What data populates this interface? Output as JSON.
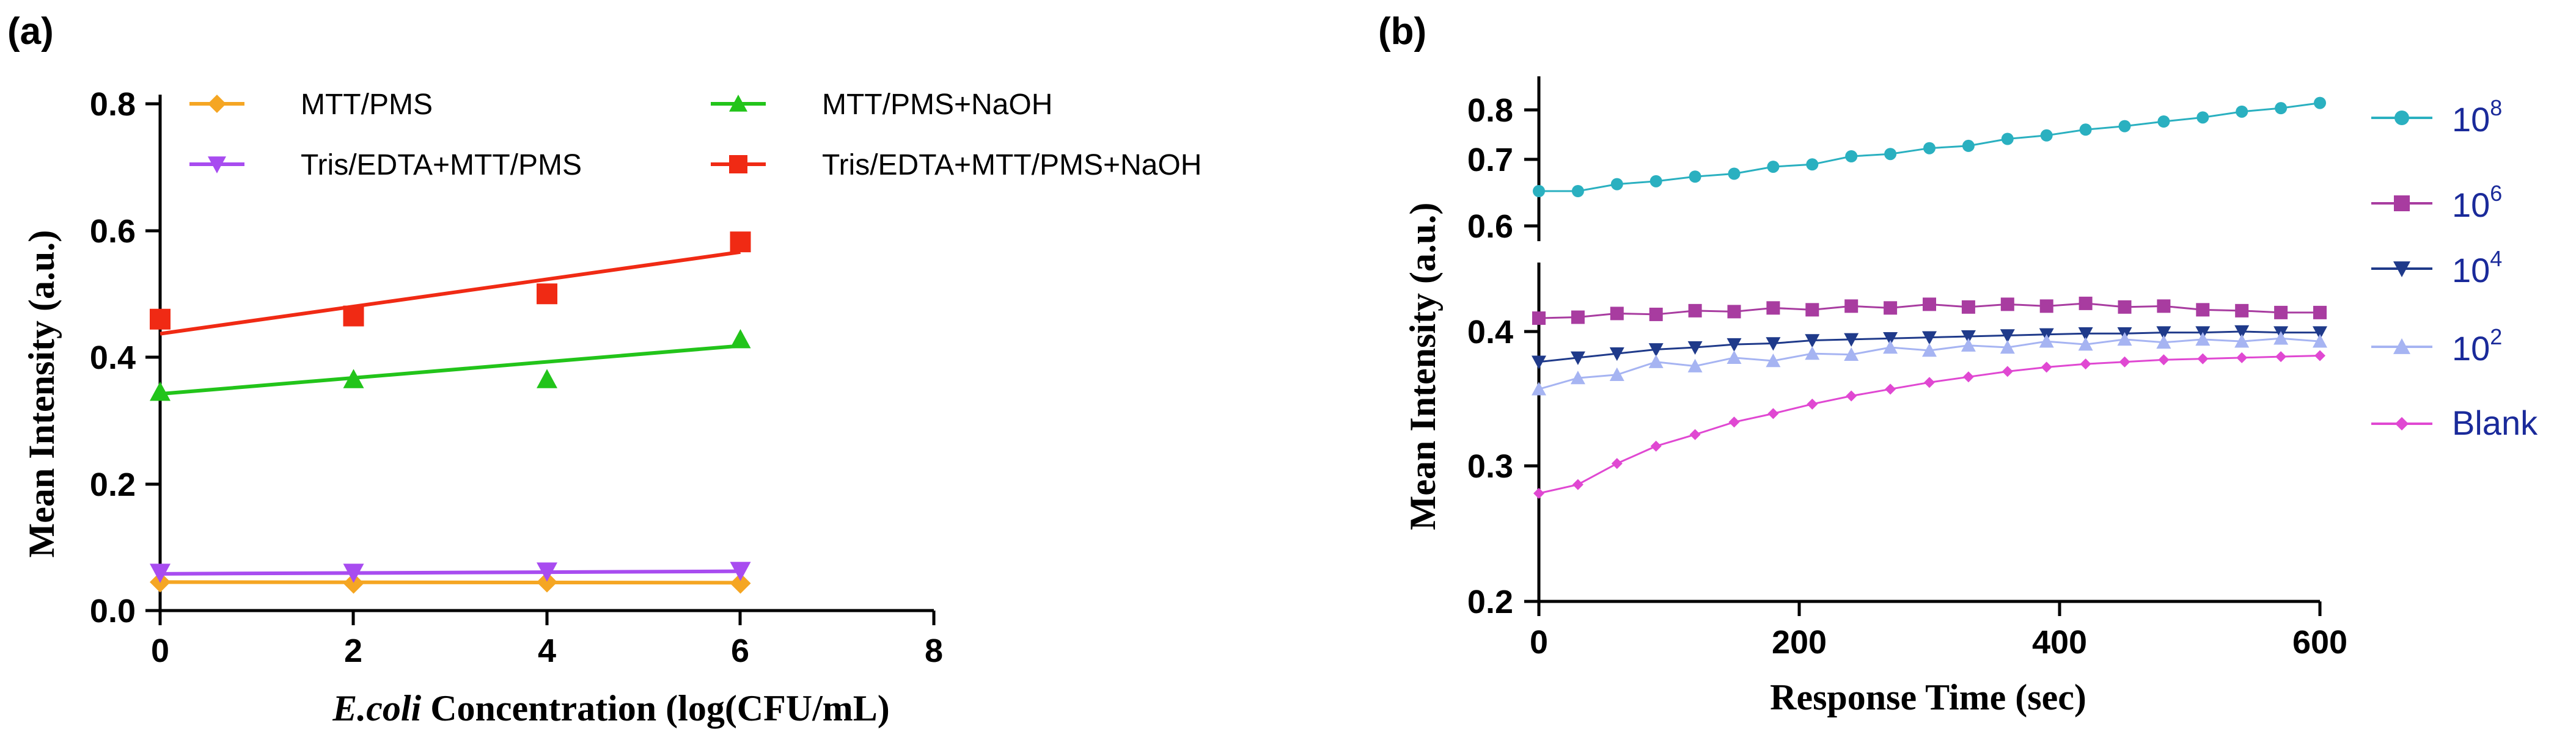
{
  "chart_data": [
    {
      "panel": "(a)",
      "type": "scatter",
      "xlabel_italic": "E.coli",
      "xlabel_rest": " Concentration (log(CFU/mL)",
      "ylabel": "Mean Intensity (a.u.)",
      "xlim": [
        0,
        8
      ],
      "ylim": [
        0,
        0.8
      ],
      "xticks": [
        "0",
        "2",
        "4",
        "6",
        "8"
      ],
      "yticks": [
        "0.0",
        "0.2",
        "0.4",
        "0.6",
        "0.8"
      ],
      "legend": "top",
      "series": [
        {
          "name": "MTT/PMS",
          "color": "#f5a623",
          "marker": "diamond",
          "x": [
            0,
            2,
            4,
            6
          ],
          "y": [
            0.045,
            0.043,
            0.045,
            0.043
          ],
          "fit": [
            0.045,
            0.044
          ]
        },
        {
          "name": "MTT/PMS+NaOH",
          "color": "#22c41a",
          "marker": "triangle-up",
          "x": [
            0,
            2,
            4,
            6
          ],
          "y": [
            0.345,
            0.365,
            0.365,
            0.428
          ],
          "fit": [
            0.342,
            0.418
          ]
        },
        {
          "name": "Tris/EDTA+MTT/PMS",
          "color": "#a84cf0",
          "marker": "triangle-down",
          "x": [
            0,
            2,
            4,
            6
          ],
          "y": [
            0.06,
            0.06,
            0.062,
            0.063
          ],
          "fit": [
            0.058,
            0.062
          ]
        },
        {
          "name": "Tris/EDTA+MTT/PMS+NaOH",
          "color": "#f02a14",
          "marker": "square",
          "x": [
            0,
            2,
            4,
            6
          ],
          "y": [
            0.46,
            0.465,
            0.5,
            0.582
          ],
          "fit": [
            0.437,
            0.566
          ]
        }
      ]
    },
    {
      "panel": "(b)",
      "type": "line",
      "xlabel": "Response Time (sec)",
      "ylabel": "Mean Intensity (a.u.)",
      "xlim": [
        0,
        600
      ],
      "xticks": [
        "0",
        "200",
        "400",
        "600"
      ],
      "y_axis_broken": true,
      "upper_ylim": [
        0.6,
        0.84
      ],
      "upper_yticks": [
        "0.6",
        "0.7",
        "0.8"
      ],
      "lower_ylim": [
        0.2,
        0.45
      ],
      "lower_yticks": [
        "0.2",
        "0.3",
        "0.4"
      ],
      "legend": "right",
      "x": [
        0,
        30,
        60,
        90,
        120,
        150,
        180,
        210,
        240,
        270,
        300,
        330,
        360,
        390,
        420,
        450,
        480,
        510,
        540,
        570,
        600
      ],
      "series": [
        {
          "name_base": "10",
          "name_sup": "8",
          "color": "#2ab0c0",
          "marker": "circle",
          "values": [
            0.66,
            0.66,
            0.672,
            0.677,
            0.685,
            0.69,
            0.702,
            0.706,
            0.72,
            0.724,
            0.734,
            0.738,
            0.75,
            0.756,
            0.766,
            0.772,
            0.78,
            0.787,
            0.797,
            0.803,
            0.812
          ]
        },
        {
          "name_base": "10",
          "name_sup": "6",
          "color": "#a83ca0",
          "marker": "square",
          "values": [
            0.414,
            0.415,
            0.419,
            0.418,
            0.422,
            0.421,
            0.425,
            0.423,
            0.427,
            0.425,
            0.429,
            0.426,
            0.429,
            0.427,
            0.43,
            0.426,
            0.427,
            0.423,
            0.422,
            0.42,
            0.42
          ]
        },
        {
          "name_base": "10",
          "name_sup": "4",
          "color": "#1f3a8a",
          "marker": "triangle-down",
          "values": [
            0.37,
            0.374,
            0.378,
            0.382,
            0.384,
            0.387,
            0.388,
            0.391,
            0.392,
            0.393,
            0.394,
            0.395,
            0.396,
            0.397,
            0.398,
            0.398,
            0.399,
            0.399,
            0.4,
            0.399,
            0.399
          ]
        },
        {
          "name_base": "10",
          "name_sup": "2",
          "color": "#a6b4f2",
          "marker": "triangle-up",
          "values": [
            0.345,
            0.355,
            0.358,
            0.37,
            0.366,
            0.374,
            0.371,
            0.378,
            0.377,
            0.384,
            0.381,
            0.386,
            0.384,
            0.39,
            0.387,
            0.392,
            0.389,
            0.392,
            0.39,
            0.393,
            0.39
          ]
        },
        {
          "name": "Blank",
          "color": "#e048d2",
          "marker": "diamond",
          "values": [
            0.264,
            0.27,
            0.285,
            0.298,
            0.307,
            0.317,
            0.324,
            0.332,
            0.339,
            0.345,
            0.351,
            0.356,
            0.361,
            0.365,
            0.368,
            0.37,
            0.372,
            0.373,
            0.374,
            0.375,
            0.376
          ]
        }
      ]
    }
  ]
}
